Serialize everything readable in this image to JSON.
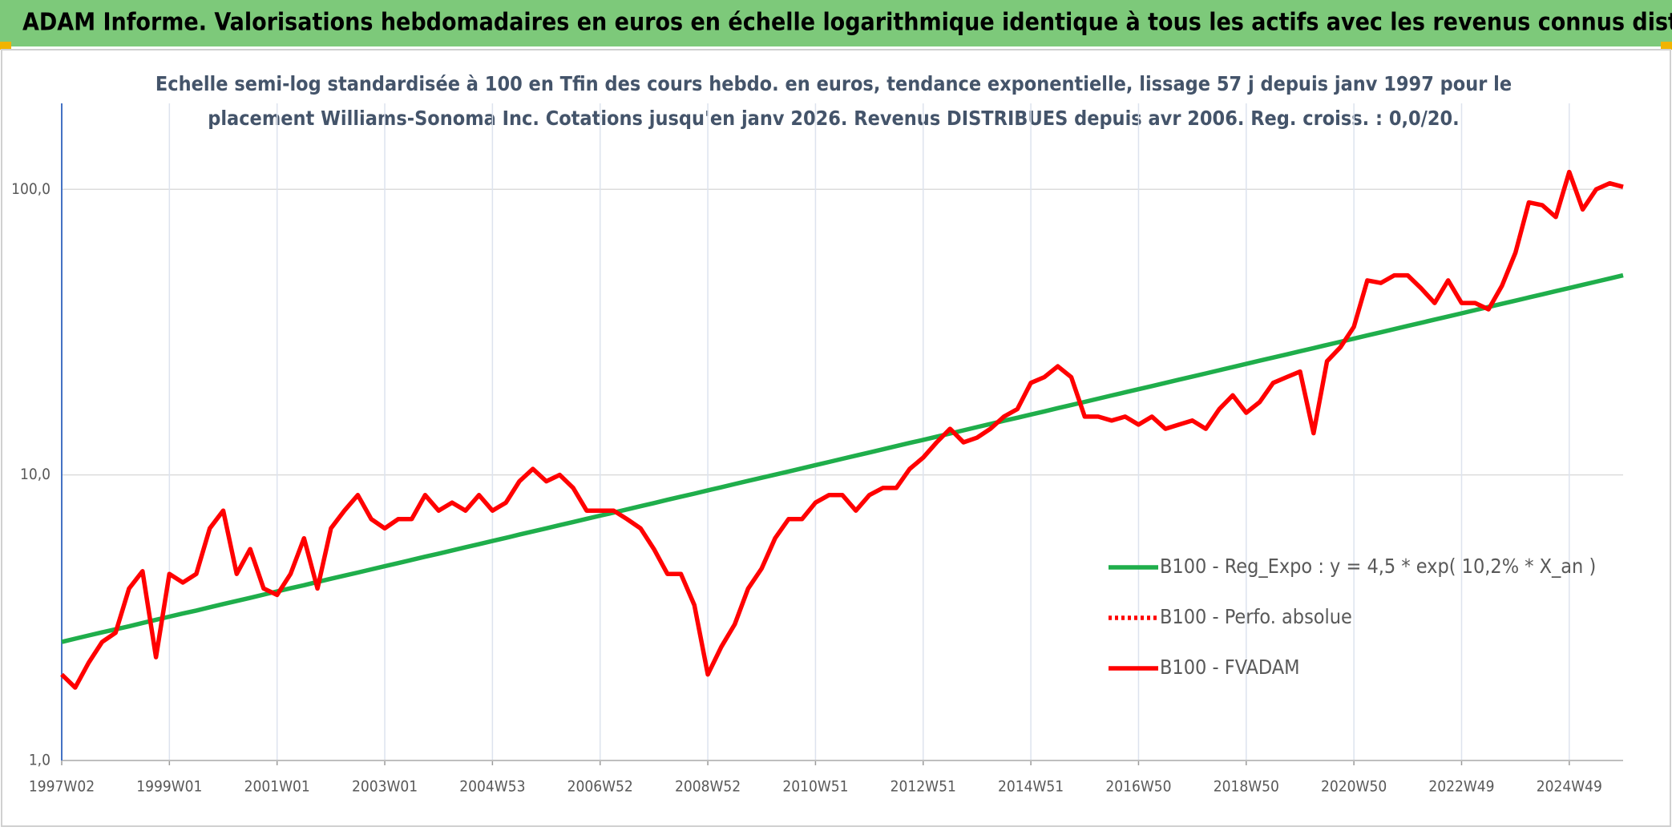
{
  "chart_data": {
    "type": "line",
    "title": "ADAM Informe. Valorisations hebdomadaires en euros en échelle logarithmique identique à tous les actifs avec les revenus connus distribués",
    "subtitle": [
      "Echelle semi-log standardisée à 100 en Tfin des cours hebdo. en euros, tendance exponentielle, lissage 57 j depuis janv 1997 pour le",
      "placement Williams-Sonoma Inc. Cotations jusqu'en janv 2026. Revenus DISTRIBUES depuis avr 2006. Reg. croiss. : 0,0/20."
    ],
    "categories": [
      "1997W02",
      null,
      null,
      null,
      null,
      null,
      null,
      null,
      "1999W01",
      null,
      null,
      null,
      null,
      null,
      null,
      null,
      "2001W01",
      null,
      null,
      null,
      null,
      null,
      null,
      null,
      "2003W01",
      null,
      null,
      null,
      null,
      null,
      null,
      null,
      "2004W53",
      null,
      null,
      null,
      null,
      null,
      null,
      null,
      "2006W52",
      null,
      null,
      null,
      null,
      null,
      null,
      null,
      "2008W52",
      null,
      null,
      null,
      null,
      null,
      null,
      null,
      "2010W51",
      null,
      null,
      null,
      null,
      null,
      null,
      null,
      "2012W51",
      null,
      null,
      null,
      null,
      null,
      null,
      null,
      "2014W51",
      null,
      null,
      null,
      null,
      null,
      null,
      null,
      "2016W50",
      null,
      null,
      null,
      null,
      null,
      null,
      null,
      "2018W50",
      null,
      null,
      null,
      null,
      null,
      null,
      null,
      "2020W50",
      null,
      null,
      null,
      null,
      null,
      null,
      null,
      "2022W49",
      null,
      null,
      null,
      null,
      null,
      null,
      null,
      "2024W49",
      null,
      null,
      null,
      null
    ],
    "log_scale": true,
    "ylim": [
      1,
      200
    ],
    "yticks": [
      {
        "value": 1,
        "label": "1,0"
      },
      {
        "value": 10,
        "label": "10,0"
      },
      {
        "value": 100,
        "label": "100,0"
      }
    ],
    "grid": true,
    "legend_position": "right",
    "series": [
      {
        "name": "B100 - Reg_Expo : y = 4,5 * exp( 10,2% *  X_an )",
        "color": "#1fae4b",
        "line_style": "solid",
        "values": [
          2.6,
          2.67,
          2.74,
          2.81,
          2.88,
          2.95,
          3.03,
          3.11,
          3.19,
          3.27,
          3.35,
          3.44,
          3.53,
          3.62,
          3.71,
          3.81,
          3.91,
          4.01,
          4.11,
          4.22,
          4.33,
          4.44,
          4.55,
          4.67,
          4.79,
          4.91,
          5.04,
          5.17,
          5.3,
          5.44,
          5.58,
          5.72,
          5.87,
          6.02,
          6.18,
          6.34,
          6.5,
          6.67,
          6.84,
          7.02,
          7.2,
          7.38,
          7.57,
          7.77,
          7.97,
          8.18,
          8.39,
          8.6,
          8.83,
          9.05,
          9.29,
          9.53,
          9.77,
          10.02,
          10.28,
          10.55,
          10.82,
          11.1,
          11.39,
          11.68,
          11.98,
          12.29,
          12.61,
          12.94,
          13.27,
          13.61,
          13.96,
          14.33,
          14.7,
          15.08,
          15.47,
          15.86,
          16.27,
          16.69,
          17.13,
          17.57,
          18.02,
          18.49,
          18.97,
          19.46,
          19.96,
          20.47,
          21.0,
          21.55,
          22.1,
          22.67,
          23.26,
          23.86,
          24.48,
          25.11,
          25.76,
          26.42,
          27.1,
          27.8,
          28.52,
          29.26,
          30.01,
          30.79,
          31.58,
          32.4,
          33.24,
          34.1,
          34.98,
          35.88,
          36.8,
          37.75,
          38.73,
          39.73,
          40.76,
          41.81,
          42.89,
          44.0,
          45.13,
          46.3,
          47.49,
          48.72,
          49.98
        ]
      },
      {
        "name": "B100 - Perfo. absolue",
        "color": "#ff0000",
        "line_style": "dotted"
      },
      {
        "name": "B100 - FVADAM",
        "color": "#ff0000",
        "line_style": "solid",
        "values": [
          2.0,
          1.8,
          2.2,
          2.6,
          2.8,
          4.0,
          4.6,
          2.3,
          4.5,
          4.2,
          4.5,
          6.5,
          7.5,
          4.5,
          5.5,
          4.0,
          3.8,
          4.5,
          6.0,
          4.0,
          6.5,
          7.5,
          8.5,
          7.0,
          6.5,
          7.0,
          7.0,
          8.5,
          7.5,
          8.0,
          7.5,
          8.5,
          7.5,
          8.0,
          9.5,
          10.5,
          9.5,
          10.0,
          9.0,
          7.5,
          7.5,
          7.5,
          7.0,
          6.5,
          5.5,
          4.5,
          4.5,
          3.5,
          2.0,
          2.5,
          3.0,
          4.0,
          4.7,
          6.0,
          7.0,
          7.0,
          8.0,
          8.5,
          8.5,
          7.5,
          8.5,
          9.0,
          9.0,
          10.5,
          11.5,
          13.0,
          14.5,
          13.0,
          13.5,
          14.5,
          16.0,
          17.0,
          21.0,
          22.0,
          24.0,
          22.0,
          16.0,
          16.0,
          15.5,
          16.0,
          15.0,
          16.0,
          14.5,
          15.0,
          15.5,
          14.5,
          17.0,
          19.0,
          16.5,
          18.0,
          21.0,
          22.0,
          23.0,
          14.0,
          25.0,
          28.0,
          33.0,
          48.0,
          47.0,
          50.0,
          50.0,
          45.0,
          40.0,
          48.0,
          40.0,
          40.0,
          38.0,
          46.0,
          60.0,
          90.0,
          88.0,
          80.0,
          115.0,
          85.0,
          100.0,
          105.0,
          102.0
        ]
      }
    ]
  }
}
